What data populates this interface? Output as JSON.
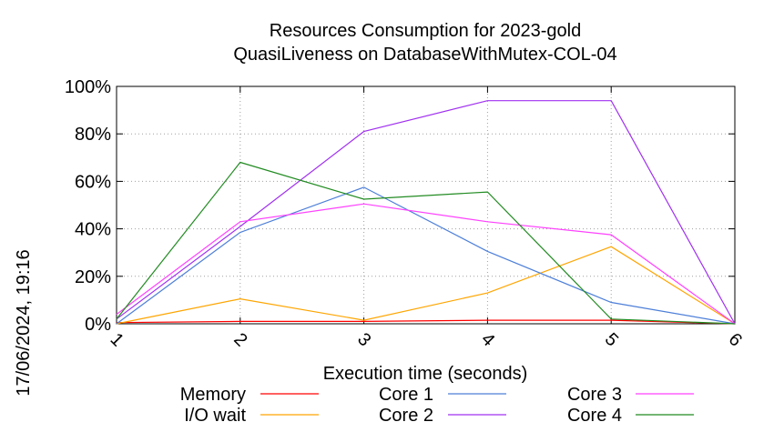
{
  "chart_data": {
    "type": "line",
    "title": "Resources Consumption for 2023-gold",
    "subtitle": "QuasiLiveness on DatabaseWithMutex-COL-04",
    "xlabel": "Execution time (seconds)",
    "ylabel": "",
    "side_label": "17/06/2024, 19:16",
    "x": [
      1,
      2,
      3,
      4,
      5,
      6
    ],
    "x_ticks": [
      "1",
      "2",
      "3",
      "4",
      "5",
      "6"
    ],
    "xlim": [
      1,
      6
    ],
    "ylim": [
      0,
      100
    ],
    "y_ticks": [
      {
        "value": 0,
        "label": "0%"
      },
      {
        "value": 20,
        "label": "20%"
      },
      {
        "value": 40,
        "label": "40%"
      },
      {
        "value": 60,
        "label": "60%"
      },
      {
        "value": 80,
        "label": "80%"
      },
      {
        "value": 100,
        "label": "100%"
      }
    ],
    "grid": true,
    "legend_position": "bottom",
    "series": [
      {
        "name": "Memory",
        "color": "#ff0000",
        "values": [
          0.5,
          1,
          1,
          1.5,
          1.5,
          0
        ]
      },
      {
        "name": "I/O wait",
        "color": "#ffa500",
        "values": [
          0,
          10.5,
          1.5,
          13,
          32.5,
          0
        ]
      },
      {
        "name": "Core 1",
        "color": "#4d7fd8",
        "values": [
          0,
          38.5,
          57.5,
          30.5,
          9,
          0
        ]
      },
      {
        "name": "Core 2",
        "color": "#a030f0",
        "values": [
          2,
          41,
          81,
          94,
          94,
          0
        ]
      },
      {
        "name": "Core 3",
        "color": "#ff40ff",
        "values": [
          4,
          43,
          50.5,
          43,
          37.5,
          0
        ]
      },
      {
        "name": "Core 4",
        "color": "#228b22",
        "values": [
          2,
          68,
          52.5,
          55.5,
          2,
          0
        ]
      }
    ]
  }
}
